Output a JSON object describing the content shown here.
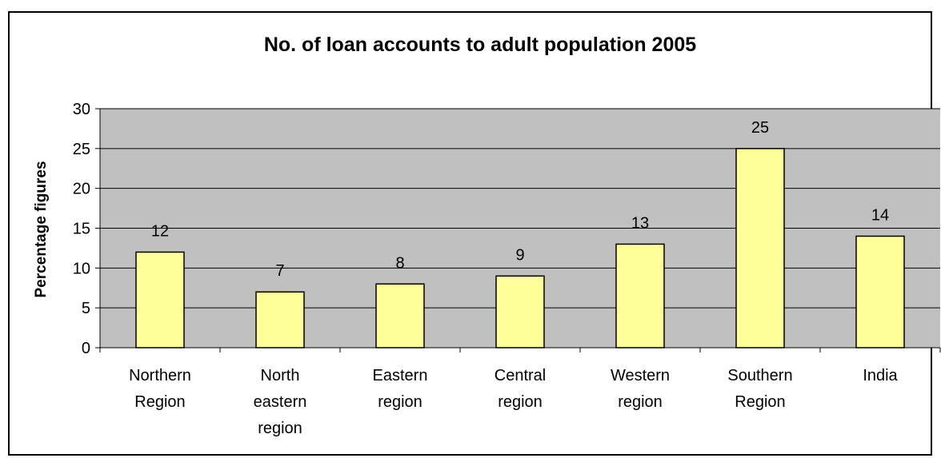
{
  "chart_data": {
    "type": "bar",
    "title": "No. of loan accounts to adult population 2005",
    "xlabel": "",
    "ylabel": "Percentage figures",
    "categories": [
      [
        "Northern",
        "Region"
      ],
      [
        "North",
        "eastern",
        "region"
      ],
      [
        "Eastern",
        "region"
      ],
      [
        "Central",
        "region"
      ],
      [
        "Western",
        "region"
      ],
      [
        "Southern",
        "Region"
      ],
      [
        "India"
      ]
    ],
    "values": [
      12,
      7,
      8,
      9,
      13,
      25,
      14
    ],
    "data_labels": [
      "12",
      "7",
      "8",
      "9",
      "13",
      "25",
      "14"
    ],
    "ylim": [
      0,
      30
    ],
    "yticks": [
      0,
      5,
      10,
      15,
      20,
      25,
      30
    ],
    "grid": true,
    "legend": "none",
    "colors": {
      "bar_fill": "#ffff99",
      "bar_stroke": "#000000",
      "plot_background": "#c0c0c0",
      "gridline": "#000000"
    }
  }
}
